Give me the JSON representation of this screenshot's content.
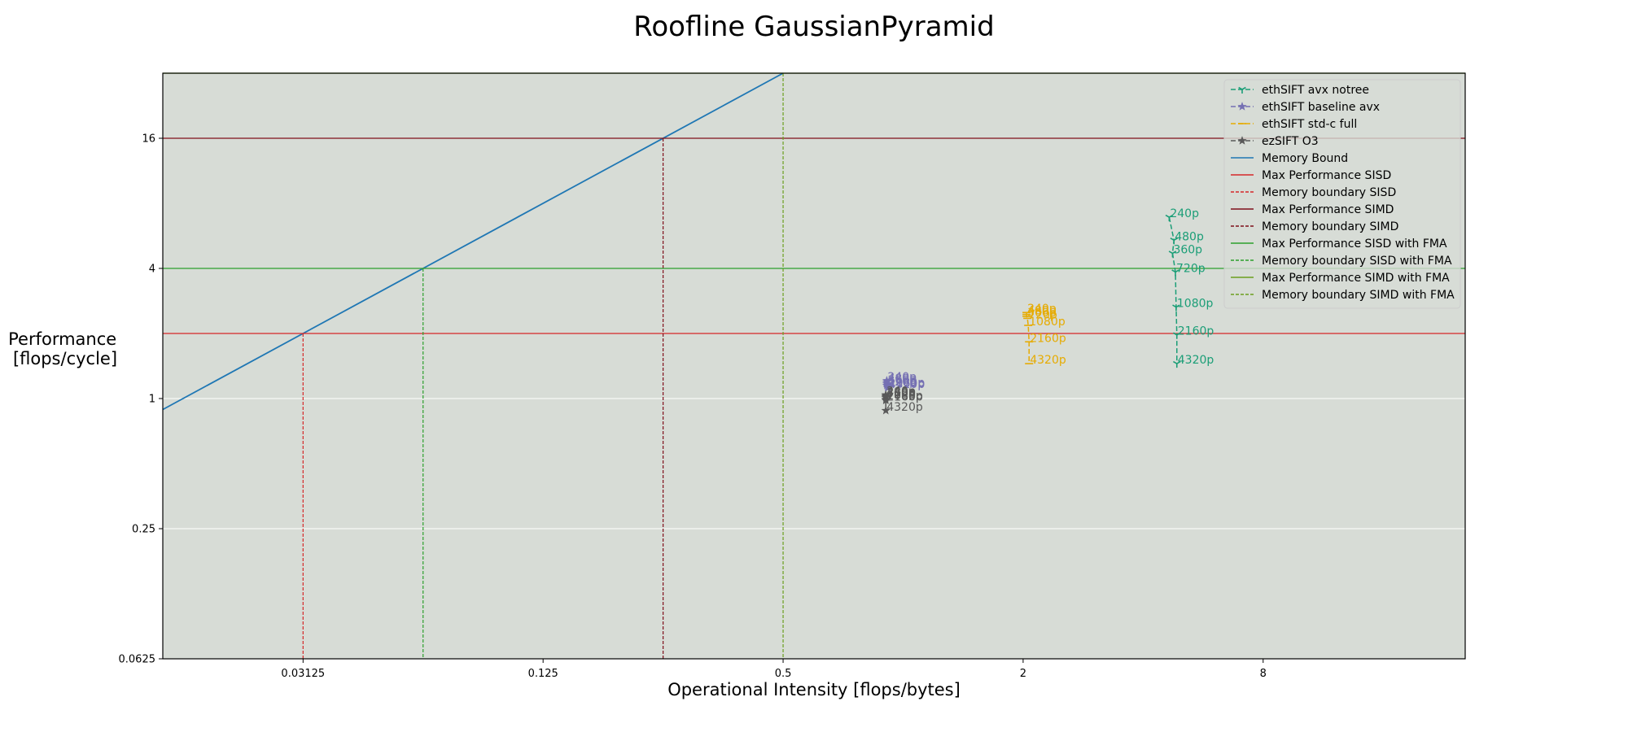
{
  "chart_data": {
    "type": "scatter",
    "title": "Roofline GaussianPyramid",
    "xlabel": "Operational Intensity [flops/bytes]",
    "ylabel_lines": [
      "Performance",
      "[flops/cycle]"
    ],
    "xscale": "log2",
    "yscale": "log2",
    "xlim": [
      0.0139,
      25.7
    ],
    "ylim": [
      0.0625,
      32
    ],
    "xticks": [
      0.03125,
      0.125,
      0.5,
      2,
      8
    ],
    "xtick_labels": [
      "0.03125",
      "0.125",
      "0.5",
      "2",
      "8"
    ],
    "yticks": [
      0.0625,
      0.25,
      1,
      4,
      16
    ],
    "ytick_labels": [
      "0.0625",
      "0.25",
      "1",
      "4",
      "16"
    ],
    "grid": "horizontal",
    "background": "#d7dcd6",
    "legend_position": "upper right",
    "series": [
      {
        "name": "ethSIFT avx notree",
        "style": "dashed",
        "marker": "tri",
        "color": "#1b9e77",
        "points": [
          {
            "x": 4.65,
            "y": 6.9,
            "label": "240p"
          },
          {
            "x": 4.78,
            "y": 5.4,
            "label": "480p"
          },
          {
            "x": 4.74,
            "y": 4.7,
            "label": "360p"
          },
          {
            "x": 4.82,
            "y": 3.85,
            "label": "720p"
          },
          {
            "x": 4.84,
            "y": 2.65,
            "label": "1080p"
          },
          {
            "x": 4.86,
            "y": 1.97,
            "label": "2160p"
          },
          {
            "x": 4.86,
            "y": 1.45,
            "label": "4320p"
          }
        ]
      },
      {
        "name": "ethSIFT baseline avx",
        "style": "dashed",
        "marker": "star",
        "color": "#7570b3",
        "points": [
          {
            "x": 0.91,
            "y": 1.21,
            "label": "240p"
          },
          {
            "x": 0.91,
            "y": 1.19,
            "label": "480p"
          },
          {
            "x": 0.91,
            "y": 1.17,
            "label": "360p"
          },
          {
            "x": 0.91,
            "y": 1.15,
            "label": "720p"
          },
          {
            "x": 0.915,
            "y": 1.14,
            "label": "1080p"
          },
          {
            "x": 0.915,
            "y": 1.13,
            "label": "2160p"
          },
          {
            "x": 0.915,
            "y": 1.12,
            "label": "4320p"
          }
        ]
      },
      {
        "name": "ethSIFT std-c full",
        "style": "dashed",
        "marker": "line",
        "color": "#e6ab02",
        "points": [
          {
            "x": 2.04,
            "y": 2.5,
            "label": "240p"
          },
          {
            "x": 2.04,
            "y": 2.45,
            "label": "480p"
          },
          {
            "x": 2.04,
            "y": 2.4,
            "label": "360p"
          },
          {
            "x": 2.05,
            "y": 2.35,
            "label": "720p"
          },
          {
            "x": 2.06,
            "y": 2.18,
            "label": "1080p"
          },
          {
            "x": 2.07,
            "y": 1.83,
            "label": "2160p"
          },
          {
            "x": 2.07,
            "y": 1.45,
            "label": "4320p"
          }
        ]
      },
      {
        "name": "ezSIFT O3",
        "style": "dashed",
        "marker": "star",
        "color": "#595959",
        "points": [
          {
            "x": 0.905,
            "y": 1.04,
            "label": "240p"
          },
          {
            "x": 0.905,
            "y": 1.03,
            "label": "480p"
          },
          {
            "x": 0.905,
            "y": 1.02,
            "label": "360p"
          },
          {
            "x": 0.905,
            "y": 1.01,
            "label": "720p"
          },
          {
            "x": 0.905,
            "y": 0.99,
            "label": "1080p"
          },
          {
            "x": 0.905,
            "y": 0.98,
            "label": "2160p"
          },
          {
            "x": 0.905,
            "y": 0.88,
            "label": "4320p"
          }
        ]
      }
    ],
    "roofs": [
      {
        "name": "Memory Bound",
        "kind": "slope",
        "slope": 64,
        "color": "#1f77b4"
      },
      {
        "name": "Max Performance SISD",
        "kind": "hline",
        "y": 2,
        "color": "#d62728"
      },
      {
        "name": "Memory boundary SISD",
        "kind": "vline",
        "x": 0.03125,
        "y": 2,
        "color": "#d62728"
      },
      {
        "name": "Max Performance SIMD",
        "kind": "hline",
        "y": 16,
        "color": "#7f0f1a"
      },
      {
        "name": "Memory boundary SIMD",
        "kind": "vline",
        "x": 0.25,
        "y": 16,
        "color": "#7f0f1a"
      },
      {
        "name": "Max Performance SISD with FMA",
        "kind": "hline",
        "y": 4,
        "color": "#2ca02c"
      },
      {
        "name": "Memory boundary SISD with FMA",
        "kind": "vline",
        "x": 0.0625,
        "y": 4,
        "color": "#2ca02c"
      },
      {
        "name": "Max Performance SIMD with FMA",
        "kind": "hline",
        "y": 32,
        "color": "#6b9e1f"
      },
      {
        "name": "Memory boundary SIMD with FMA",
        "kind": "vline",
        "x": 0.5,
        "y": 32,
        "color": "#6b9e1f"
      }
    ]
  }
}
